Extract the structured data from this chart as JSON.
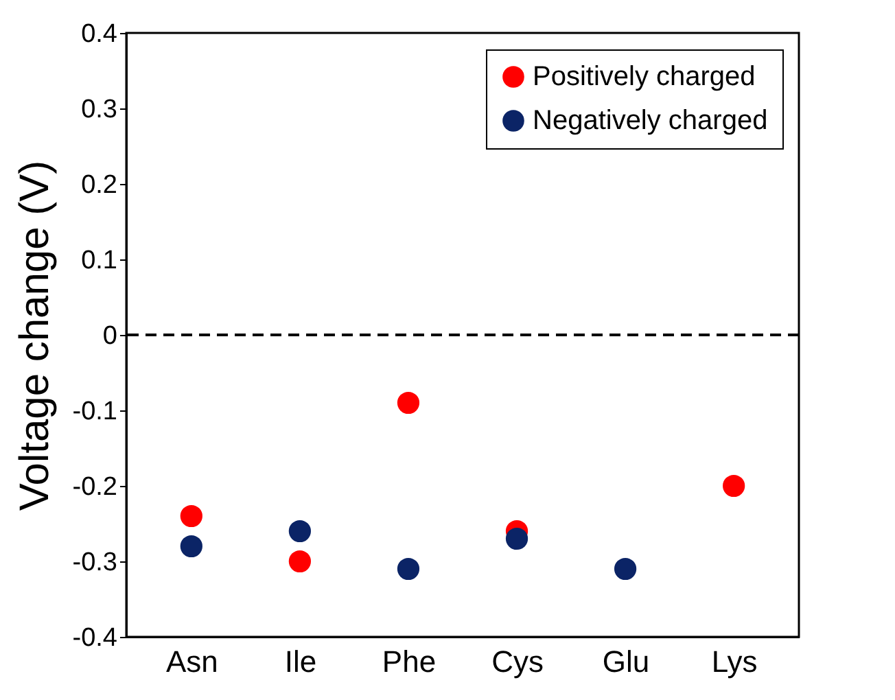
{
  "chart_data": {
    "type": "scatter",
    "ylabel": "Voltage change (V)",
    "categories": [
      "Asn",
      "Ile",
      "Phe",
      "Cys",
      "Glu",
      "Lys"
    ],
    "series": [
      {
        "name": "Positively charged",
        "color": "#ff0000",
        "values": [
          -0.24,
          -0.3,
          -0.09,
          -0.26,
          null,
          -0.2
        ]
      },
      {
        "name": "Negatively charged",
        "color": "#0b2466",
        "values": [
          -0.28,
          -0.26,
          -0.31,
          -0.27,
          -0.31,
          null
        ]
      }
    ],
    "ylim": [
      -0.4,
      0.4
    ],
    "yticks": [
      -0.4,
      -0.3,
      -0.2,
      -0.1,
      0,
      0.1,
      0.2,
      0.3,
      0.4
    ],
    "ref_lines": [
      {
        "axis": "y",
        "value": 0,
        "line_style": "dashed",
        "color": "#000000"
      }
    ],
    "grid": false,
    "legend": "top right",
    "marker": "circle"
  }
}
